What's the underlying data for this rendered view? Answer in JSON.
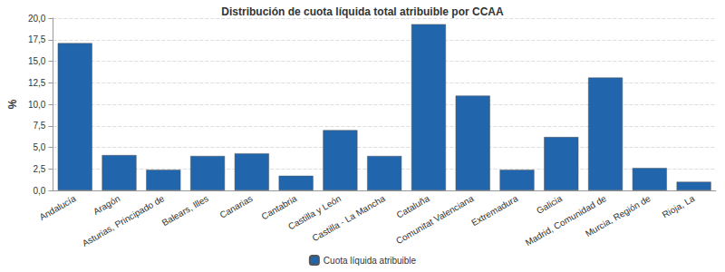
{
  "chart_data": {
    "type": "bar",
    "title": "Distribución de cuota líquida total atribuible por CCAA",
    "y_label": "%",
    "categories": [
      "Andalucía",
      "Aragón",
      "Asturias, Principado de",
      "Balears, Illes",
      "Canarias",
      "Cantabria",
      "Castilla y León",
      "Castilla - La Mancha",
      "Cataluña",
      "Comunitat Valenciana",
      "Extremadura",
      "Galicia",
      "Madrid, Comunidad de",
      "Murcia, Región de",
      "Rioja, La"
    ],
    "series": [
      {
        "name": "Cuota líquida atribuible",
        "color": "#2166ac",
        "values": [
          17.1,
          4.1,
          2.4,
          4.0,
          4.3,
          1.7,
          7.0,
          4.0,
          19.3,
          11.0,
          2.4,
          6.2,
          13.1,
          2.6,
          1.0
        ]
      }
    ],
    "ylim": [
      0,
      20
    ],
    "yticks": [
      {
        "value": 0,
        "label": "0,0"
      },
      {
        "value": 2.5,
        "label": "2,5"
      },
      {
        "value": 5,
        "label": "5,0"
      },
      {
        "value": 7.5,
        "label": "7,5"
      },
      {
        "value": 10,
        "label": "10,0"
      },
      {
        "value": 12.5,
        "label": "12,5"
      },
      {
        "value": 15,
        "label": "15,0"
      },
      {
        "value": 17.5,
        "label": "17,5"
      },
      {
        "value": 20,
        "label": "20,0"
      }
    ],
    "grid": true,
    "legend": "bottom"
  }
}
